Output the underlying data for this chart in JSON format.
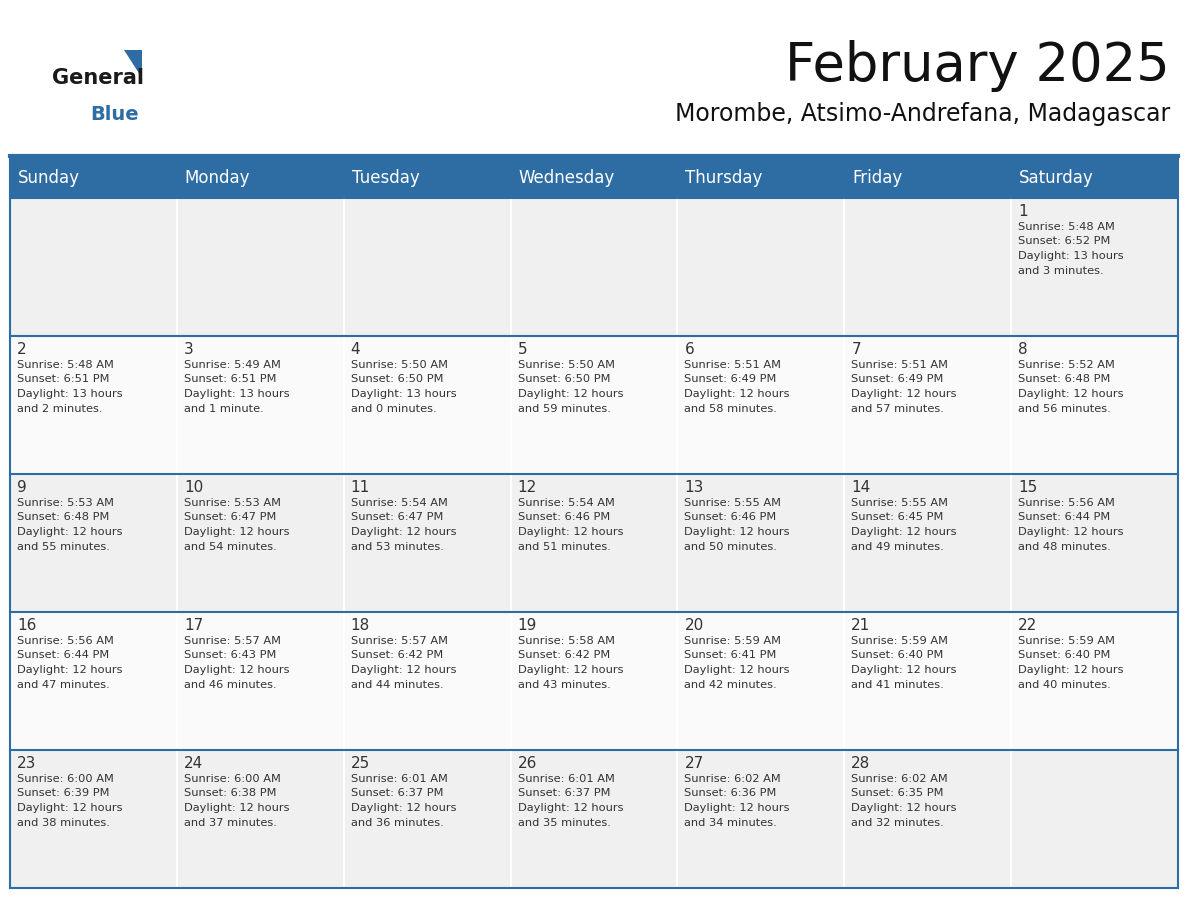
{
  "title": "February 2025",
  "subtitle": "Morombe, Atsimo-Andrefana, Madagascar",
  "header_color": "#2E6DA4",
  "header_text_color": "#FFFFFF",
  "cell_bg_even": "#F0F0F0",
  "cell_bg_odd": "#FAFAFA",
  "border_color": "#2E6DA4",
  "text_color": "#333333",
  "day_headers": [
    "Sunday",
    "Monday",
    "Tuesday",
    "Wednesday",
    "Thursday",
    "Friday",
    "Saturday"
  ],
  "title_fontsize": 38,
  "subtitle_fontsize": 17,
  "header_fontsize": 12,
  "day_num_fontsize": 11,
  "cell_text_fontsize": 8.2,
  "calendar_data": [
    [
      null,
      null,
      null,
      null,
      null,
      null,
      {
        "day": 1,
        "sunrise": "5:48 AM",
        "sunset": "6:52 PM",
        "daylight_hours": 13,
        "daylight_minutes": 3
      }
    ],
    [
      {
        "day": 2,
        "sunrise": "5:48 AM",
        "sunset": "6:51 PM",
        "daylight_hours": 13,
        "daylight_minutes": 2
      },
      {
        "day": 3,
        "sunrise": "5:49 AM",
        "sunset": "6:51 PM",
        "daylight_hours": 13,
        "daylight_minutes": 1
      },
      {
        "day": 4,
        "sunrise": "5:50 AM",
        "sunset": "6:50 PM",
        "daylight_hours": 13,
        "daylight_minutes": 0
      },
      {
        "day": 5,
        "sunrise": "5:50 AM",
        "sunset": "6:50 PM",
        "daylight_hours": 12,
        "daylight_minutes": 59
      },
      {
        "day": 6,
        "sunrise": "5:51 AM",
        "sunset": "6:49 PM",
        "daylight_hours": 12,
        "daylight_minutes": 58
      },
      {
        "day": 7,
        "sunrise": "5:51 AM",
        "sunset": "6:49 PM",
        "daylight_hours": 12,
        "daylight_minutes": 57
      },
      {
        "day": 8,
        "sunrise": "5:52 AM",
        "sunset": "6:48 PM",
        "daylight_hours": 12,
        "daylight_minutes": 56
      }
    ],
    [
      {
        "day": 9,
        "sunrise": "5:53 AM",
        "sunset": "6:48 PM",
        "daylight_hours": 12,
        "daylight_minutes": 55
      },
      {
        "day": 10,
        "sunrise": "5:53 AM",
        "sunset": "6:47 PM",
        "daylight_hours": 12,
        "daylight_minutes": 54
      },
      {
        "day": 11,
        "sunrise": "5:54 AM",
        "sunset": "6:47 PM",
        "daylight_hours": 12,
        "daylight_minutes": 53
      },
      {
        "day": 12,
        "sunrise": "5:54 AM",
        "sunset": "6:46 PM",
        "daylight_hours": 12,
        "daylight_minutes": 51
      },
      {
        "day": 13,
        "sunrise": "5:55 AM",
        "sunset": "6:46 PM",
        "daylight_hours": 12,
        "daylight_minutes": 50
      },
      {
        "day": 14,
        "sunrise": "5:55 AM",
        "sunset": "6:45 PM",
        "daylight_hours": 12,
        "daylight_minutes": 49
      },
      {
        "day": 15,
        "sunrise": "5:56 AM",
        "sunset": "6:44 PM",
        "daylight_hours": 12,
        "daylight_minutes": 48
      }
    ],
    [
      {
        "day": 16,
        "sunrise": "5:56 AM",
        "sunset": "6:44 PM",
        "daylight_hours": 12,
        "daylight_minutes": 47
      },
      {
        "day": 17,
        "sunrise": "5:57 AM",
        "sunset": "6:43 PM",
        "daylight_hours": 12,
        "daylight_minutes": 46
      },
      {
        "day": 18,
        "sunrise": "5:57 AM",
        "sunset": "6:42 PM",
        "daylight_hours": 12,
        "daylight_minutes": 44
      },
      {
        "day": 19,
        "sunrise": "5:58 AM",
        "sunset": "6:42 PM",
        "daylight_hours": 12,
        "daylight_minutes": 43
      },
      {
        "day": 20,
        "sunrise": "5:59 AM",
        "sunset": "6:41 PM",
        "daylight_hours": 12,
        "daylight_minutes": 42
      },
      {
        "day": 21,
        "sunrise": "5:59 AM",
        "sunset": "6:40 PM",
        "daylight_hours": 12,
        "daylight_minutes": 41
      },
      {
        "day": 22,
        "sunrise": "5:59 AM",
        "sunset": "6:40 PM",
        "daylight_hours": 12,
        "daylight_minutes": 40
      }
    ],
    [
      {
        "day": 23,
        "sunrise": "6:00 AM",
        "sunset": "6:39 PM",
        "daylight_hours": 12,
        "daylight_minutes": 38
      },
      {
        "day": 24,
        "sunrise": "6:00 AM",
        "sunset": "6:38 PM",
        "daylight_hours": 12,
        "daylight_minutes": 37
      },
      {
        "day": 25,
        "sunrise": "6:01 AM",
        "sunset": "6:37 PM",
        "daylight_hours": 12,
        "daylight_minutes": 36
      },
      {
        "day": 26,
        "sunrise": "6:01 AM",
        "sunset": "6:37 PM",
        "daylight_hours": 12,
        "daylight_minutes": 35
      },
      {
        "day": 27,
        "sunrise": "6:02 AM",
        "sunset": "6:36 PM",
        "daylight_hours": 12,
        "daylight_minutes": 34
      },
      {
        "day": 28,
        "sunrise": "6:02 AM",
        "sunset": "6:35 PM",
        "daylight_hours": 12,
        "daylight_minutes": 32
      },
      null
    ]
  ],
  "logo_general_color": "#1a1a1a",
  "logo_blue_color": "#2E6DA4",
  "logo_triangle_color": "#2E6DA4"
}
